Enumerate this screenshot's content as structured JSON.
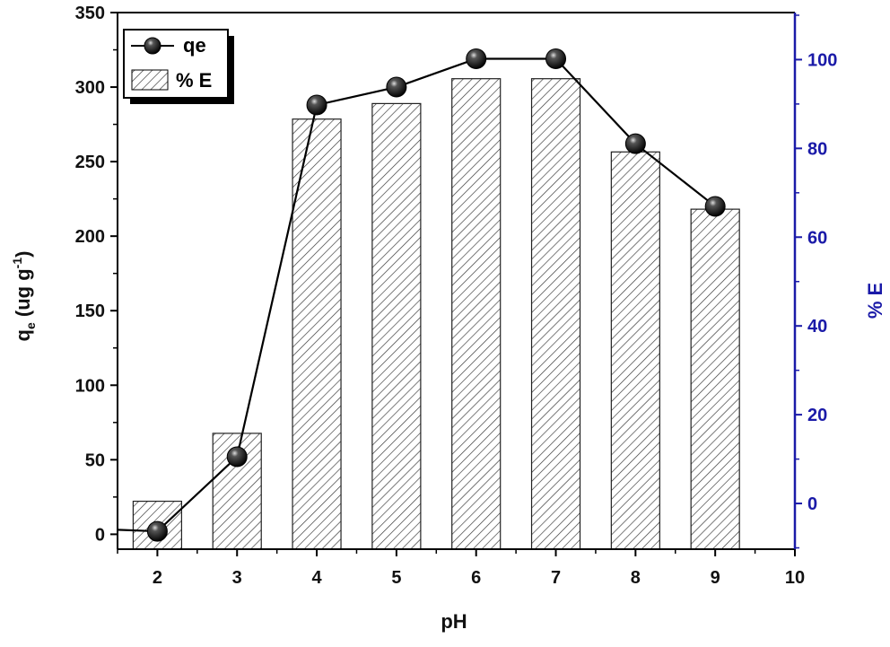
{
  "chart_data": {
    "type": "bar+line",
    "title": "",
    "xlabel": "pH",
    "ylabel_left": {
      "main": "q",
      "sub": "e",
      "rest": " (ug g",
      "sup": "-1",
      "close": ")"
    },
    "ylabel_right": "% E",
    "xlim": [
      1.5,
      10
    ],
    "ylim_left": [
      -10,
      350
    ],
    "ylim_right": [
      -10.3,
      110.6
    ],
    "x_ticks": [
      "2",
      "3",
      "4",
      "5",
      "6",
      "7",
      "8",
      "9",
      "10"
    ],
    "y_ticks_left": [
      "0",
      "50",
      "100",
      "150",
      "200",
      "250",
      "300",
      "350"
    ],
    "y_ticks_right": [
      "0",
      "20",
      "40",
      "60",
      "80",
      "100"
    ],
    "right_axis_color": "#1a1aa8",
    "legend_position": "top-left",
    "legend": {
      "line_label": "qe",
      "bar_label": "% E"
    },
    "bars": {
      "name": "% E",
      "axis": "right",
      "x": [
        2,
        3,
        4,
        5,
        6,
        7,
        8,
        9
      ],
      "values": [
        0.5,
        15.8,
        86.6,
        90.1,
        95.7,
        95.7,
        79.2,
        66.3
      ]
    },
    "line": {
      "name": "qe",
      "axis": "left",
      "x": [
        1.5,
        2,
        3,
        4,
        5,
        6,
        7,
        8,
        9
      ],
      "values": [
        3,
        2,
        52,
        288,
        300,
        319,
        319,
        262,
        220
      ]
    }
  }
}
